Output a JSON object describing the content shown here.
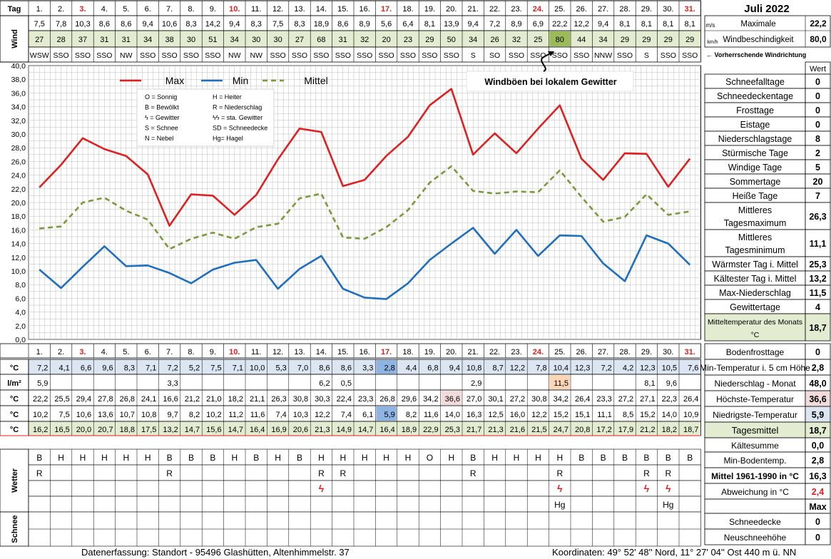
{
  "title": "Juli 2022",
  "header_labels": {
    "tag": "Tag",
    "wind": "Wind",
    "wetter": "Wetter",
    "schnee": "Schnee"
  },
  "days": [
    "1.",
    "2.",
    "3.",
    "4.",
    "5.",
    "6.",
    "7.",
    "8.",
    "9.",
    "10.",
    "11.",
    "12.",
    "13.",
    "14.",
    "15.",
    "16.",
    "17.",
    "18.",
    "19.",
    "20.",
    "21.",
    "22.",
    "23.",
    "24.",
    "25.",
    "26.",
    "27.",
    "28.",
    "29.",
    "30.",
    "31."
  ],
  "weekend_days": [
    3,
    10,
    17,
    24,
    31
  ],
  "wind": {
    "mean_ms": [
      "7,5",
      "7,8",
      "10,3",
      "8,6",
      "8,6",
      "9,4",
      "10,6",
      "8,3",
      "14,2",
      "9,4",
      "8,3",
      "7,5",
      "8,3",
      "18,9",
      "8,6",
      "8,9",
      "5,6",
      "6,4",
      "8,1",
      "13,9",
      "9,4",
      "7,2",
      "8,9",
      "6,9",
      "22,2",
      "12,2",
      "9,4",
      "8,1",
      "8,1",
      "8,1",
      "8,1"
    ],
    "gust_kmh": [
      "27",
      "28",
      "37",
      "31",
      "31",
      "34",
      "38",
      "30",
      "51",
      "34",
      "30",
      "30",
      "27",
      "68",
      "31",
      "32",
      "20",
      "23",
      "29",
      "50",
      "34",
      "26",
      "32",
      "25",
      "80",
      "44",
      "34",
      "29",
      "29",
      "29",
      "29"
    ],
    "direction": [
      "WSW",
      "SSO",
      "SSO",
      "SSO",
      "NW",
      "SSO",
      "SSO",
      "SSO",
      "SSO",
      "NW",
      "NW",
      "SSO",
      "SSO",
      "SSO",
      "SSO",
      "SSO",
      "SSO",
      "SSO",
      "SSO",
      "SSO",
      "S",
      "SO",
      "SSO",
      "SSO",
      "SSO",
      "SSO",
      "NNW",
      "SSO",
      "S",
      "SSO",
      "SSO"
    ],
    "unit_ms": "m/s",
    "unit_kmh": "km/h",
    "max_label": "Maximale",
    "max_ms": "22,2",
    "gust_label": "Windbeschindigkeit",
    "max_kmh": "80,0",
    "direction_note": "← Vorherrschende Windrichtung",
    "highlight_gust_day": 25
  },
  "chart_data": {
    "type": "line",
    "categories": [
      "1",
      "2",
      "3",
      "4",
      "5",
      "6",
      "7",
      "8",
      "9",
      "10",
      "11",
      "12",
      "13",
      "14",
      "15",
      "16",
      "17",
      "18",
      "19",
      "20",
      "21",
      "22",
      "23",
      "24",
      "25",
      "26",
      "27",
      "28",
      "29",
      "30",
      "31"
    ],
    "series": [
      {
        "name": "Max",
        "color": "#e02020",
        "dash": "",
        "values": [
          22.2,
          25.5,
          29.4,
          27.8,
          26.8,
          24.1,
          16.6,
          21.2,
          21.0,
          18.2,
          21.1,
          26.3,
          30.8,
          30.3,
          22.4,
          23.3,
          26.8,
          29.6,
          34.2,
          36.6,
          27.0,
          30.1,
          27.2,
          30.8,
          34.2,
          26.4,
          23.3,
          27.2,
          27.1,
          22.3,
          26.4
        ]
      },
      {
        "name": "Min",
        "color": "#1e6fc0",
        "dash": "",
        "values": [
          10.2,
          7.5,
          10.6,
          13.6,
          10.7,
          10.8,
          9.7,
          8.2,
          10.2,
          11.2,
          11.6,
          7.4,
          10.3,
          12.2,
          7.4,
          6.1,
          5.9,
          8.2,
          11.6,
          14.0,
          16.3,
          12.5,
          16.0,
          12.2,
          15.2,
          15.1,
          11.1,
          8.5,
          15.2,
          14.0,
          10.9
        ]
      },
      {
        "name": "Mittel",
        "color": "#7a9a3a",
        "dash": "7,5",
        "values": [
          16.2,
          16.5,
          20.0,
          20.7,
          18.8,
          17.5,
          13.2,
          14.7,
          15.6,
          14.7,
          16.4,
          16.9,
          20.6,
          21.3,
          14.9,
          14.7,
          16.4,
          18.9,
          22.9,
          25.3,
          21.7,
          21.3,
          21.6,
          21.5,
          24.7,
          20.8,
          17.2,
          17.9,
          21.2,
          18.2,
          18.7
        ]
      }
    ],
    "ylim": [
      0,
      40
    ],
    "yticks": [
      "0,0",
      "2,0",
      "4,0",
      "6,0",
      "8,0",
      "10,0",
      "12,0",
      "14,0",
      "16,0",
      "18,0",
      "20,0",
      "22,0",
      "24,0",
      "26,0",
      "28,0",
      "30,0",
      "32,0",
      "34,0",
      "36,0",
      "38,0",
      "40,0"
    ],
    "grid": true,
    "legend": "top",
    "annotation": "Windböen bei lokalem Gewitter"
  },
  "legend_box": [
    [
      "O = Sonnig",
      "H = Heiter"
    ],
    [
      "B = Bewölkt",
      "R = Niederschlag"
    ],
    [
      "ϟ = Gewitter",
      "ϟϟ = sta. Gewitter"
    ],
    [
      "S = Schnee",
      "SD = Schneedecke"
    ],
    [
      "N = Nebel",
      "Hg= Hagel"
    ]
  ],
  "rows": {
    "ground_unit": "°C",
    "ground_min": [
      "7,2",
      "4,1",
      "6,6",
      "9,6",
      "8,3",
      "7,1",
      "7,2",
      "5,2",
      "7,5",
      "7,1",
      "10,0",
      "5,3",
      "7,0",
      "8,6",
      "8,6",
      "3,3",
      "2,8",
      "4,4",
      "6,8",
      "9,4",
      "10,8",
      "8,7",
      "12,2",
      "7,8",
      "10,4",
      "12,3",
      "7,2",
      "4,2",
      "12,3",
      "10,5",
      "7,6"
    ],
    "precip_unit": "l/m²",
    "precip": [
      "5,9",
      "",
      "",
      "",
      "",
      "",
      "3,3",
      "",
      "",
      "",
      "",
      "",
      "",
      "6,2",
      "0,5",
      "",
      "",
      "",
      "",
      "",
      "2,9",
      "",
      "",
      "",
      "11,5",
      "",
      "",
      "",
      "8,1",
      "9,6",
      ""
    ],
    "tmax": [
      "22,2",
      "25,5",
      "29,4",
      "27,8",
      "26,8",
      "24,1",
      "16,6",
      "21,2",
      "21,0",
      "18,2",
      "21,1",
      "26,3",
      "30,8",
      "30,3",
      "22,4",
      "23,3",
      "26,8",
      "29,6",
      "34,2",
      "36,6",
      "27,0",
      "30,1",
      "27,2",
      "30,8",
      "34,2",
      "26,4",
      "23,3",
      "27,2",
      "27,1",
      "22,3",
      "26,4"
    ],
    "tmin": [
      "10,2",
      "7,5",
      "10,6",
      "13,6",
      "10,7",
      "10,8",
      "9,7",
      "8,2",
      "10,2",
      "11,2",
      "11,6",
      "7,4",
      "10,3",
      "12,2",
      "7,4",
      "6,1",
      "5,9",
      "8,2",
      "11,6",
      "14,0",
      "16,3",
      "12,5",
      "16,0",
      "12,2",
      "15,2",
      "15,1",
      "11,1",
      "8,5",
      "15,2",
      "14,0",
      "10,9"
    ],
    "tmean": [
      "16,2",
      "16,5",
      "20,0",
      "20,7",
      "18,8",
      "17,5",
      "13,2",
      "14,7",
      "15,6",
      "14,7",
      "16,4",
      "16,9",
      "20,6",
      "21,3",
      "14,9",
      "14,7",
      "16,4",
      "18,9",
      "22,9",
      "25,3",
      "21,7",
      "21,3",
      "21,6",
      "21,5",
      "24,7",
      "20,8",
      "17,2",
      "17,9",
      "21,2",
      "18,2",
      "18,7"
    ],
    "weather1": [
      "B",
      "H",
      "H",
      "H",
      "H",
      "H",
      "B",
      "B",
      "B",
      "H",
      "B",
      "H",
      "B",
      "H",
      "H",
      "H",
      "H",
      "H",
      "O",
      "H",
      "B",
      "H",
      "H",
      "H",
      "H",
      "B",
      "B",
      "B",
      "B",
      "B",
      "B"
    ],
    "weather2": [
      "R",
      "",
      "",
      "",
      "",
      "",
      "R",
      "",
      "",
      "",
      "",
      "",
      "",
      "R",
      "R",
      "",
      "",
      "",
      "",
      "",
      "R",
      "",
      "",
      "",
      "R",
      "",
      "",
      "",
      "R",
      "R",
      ""
    ],
    "weather3": [
      "",
      "",
      "",
      "",
      "",
      "",
      "",
      "",
      "",
      "",
      "",
      "",
      "",
      "ϟ",
      "",
      "",
      "",
      "",
      "",
      "",
      "",
      "",
      "",
      "",
      "ϟ",
      "",
      "",
      "",
      "ϟ",
      "ϟ",
      ""
    ],
    "weather4": [
      "",
      "",
      "",
      "",
      "",
      "",
      "",
      "",
      "",
      "",
      "",
      "",
      "",
      "",
      "",
      "",
      "",
      "",
      "",
      "",
      "",
      "",
      "",
      "",
      "Hg",
      "",
      "",
      "",
      "",
      "Hg",
      ""
    ]
  },
  "stats": {
    "header": "Wert",
    "items": [
      {
        "label": "Schneefalltage",
        "value": "0"
      },
      {
        "label": "Schneedeckentage",
        "value": "0"
      },
      {
        "label": "Frosttage",
        "value": "0"
      },
      {
        "label": "Eistage",
        "value": "0"
      },
      {
        "label": "Niederschlagstage",
        "value": "8"
      },
      {
        "label": "Stürmische Tage",
        "value": "2"
      },
      {
        "label": "Windige Tage",
        "value": "5"
      },
      {
        "label": "Sommertage",
        "value": "20"
      },
      {
        "label": "Heiße Tage",
        "value": "7"
      },
      {
        "label": "Mittleres Tagesmaximum",
        "value": "26,3"
      },
      {
        "label": "Mittleres Tagesminimum",
        "value": "11,1"
      },
      {
        "label": "Wärmster Tag i. Mittel",
        "value": "25,3"
      },
      {
        "label": "Kältester Tag i. Mittel",
        "value": "13,2"
      },
      {
        "label": "Max-Niederschlag",
        "value": "11,5"
      },
      {
        "label": "Gewittertage",
        "value": "4"
      },
      {
        "label": "Mitteltemperatur des Monats °C",
        "value": "18,7"
      }
    ]
  },
  "summary": [
    {
      "label": "Bodenfrosttage",
      "value": "0"
    },
    {
      "label": "Min-Temperatur i. 5 cm Höhe",
      "value": "2,8"
    },
    {
      "label": "Niederschlag - Monat",
      "value": "48,0"
    },
    {
      "label": "Höchste-Temperatur",
      "value": "36,6"
    },
    {
      "label": "Niedrigste-Temperatur",
      "value": "5,9"
    },
    {
      "label": "Tagesmittel",
      "value": "18,7"
    },
    {
      "label": "Kältesumme",
      "value": "0,0"
    },
    {
      "label": "Min-Bodentemp.",
      "value": "2,8"
    },
    {
      "label": "Mittel 1961-1990 in °C",
      "value": "16,3"
    },
    {
      "label": "Abweichung in °C",
      "value": "2,4"
    },
    {
      "label": "",
      "value": "Max"
    },
    {
      "label": "Schneedecke",
      "value": "0"
    },
    {
      "label": "Neuschneehöhe",
      "value": "0"
    }
  ],
  "footer": {
    "left": "Datenerfassung:  Standort -  95496  Glashütten, Altenhimmelstr. 37",
    "right": "Koordinaten:  49° 52' 48'' Nord,  11° 27' 04'' Ost   440 m ü. NN"
  },
  "colors": {
    "red": "#e02020",
    "blue": "#1e6fc0",
    "green_fill": "#e3ecd0",
    "blue_fill": "#dce6f2",
    "pink_fill": "#f2dcdb",
    "orange_fill": "#fbd5b5",
    "grid": "#bbbbbb"
  }
}
